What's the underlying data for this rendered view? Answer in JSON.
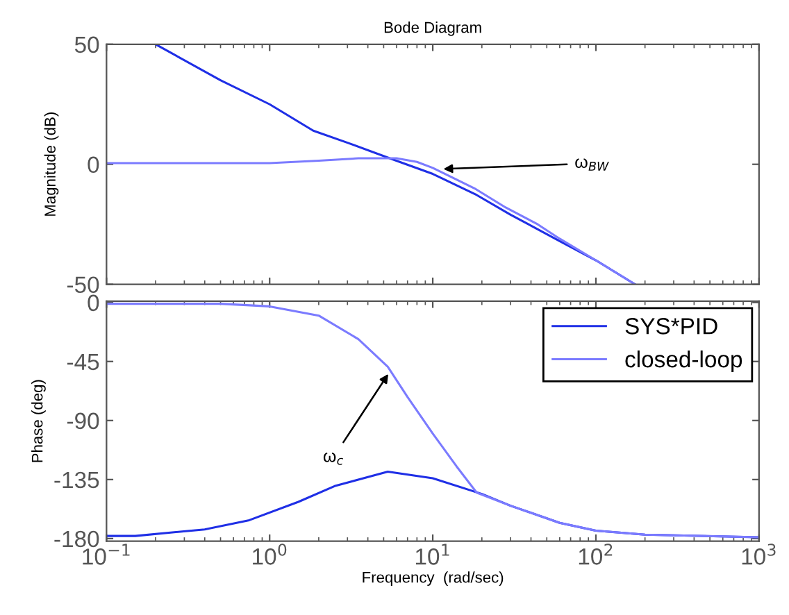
{
  "chart_data": [
    {
      "type": "line",
      "title": "Bode Diagram",
      "ylabel": "Magnitude (dB)",
      "log": "x",
      "xlim": [
        0.1,
        1000
      ],
      "xticks": [
        0.1,
        1,
        10,
        100,
        1000
      ],
      "ylim": [
        -50,
        50
      ],
      "yticks": [
        -50,
        0,
        50
      ],
      "tick_labels": "y",
      "grid": false,
      "legend": false,
      "annotations": [
        {
          "text": "ω$_{BW}$",
          "x": 11,
          "y": -2
        }
      ],
      "series": [
        {
          "color": "#1f2fe6",
          "x": [
            0.2,
            0.5,
            1,
            1.85,
            3,
            5.7,
            10,
            18.6,
            30,
            60,
            100,
            174
          ],
          "values": [
            50,
            35,
            25,
            14,
            9,
            2,
            -4,
            -12.8,
            -21,
            -32,
            -40,
            -50
          ]
        },
        {
          "color": "#7b7bff",
          "x": [
            0.1,
            1,
            2,
            3.5,
            6,
            8,
            10,
            18,
            28,
            44,
            60,
            100,
            174
          ],
          "values": [
            0.5,
            0.5,
            1.5,
            2.5,
            2.5,
            1,
            -1.5,
            -10,
            -18,
            -25,
            -31,
            -40,
            -50
          ]
        }
      ]
    },
    {
      "type": "line",
      "xlabel": "Frequency  (rad/sec)",
      "ylabel": "Phase (deg)",
      "log": "x",
      "xlim": [
        0.1,
        1000
      ],
      "xticks": [
        {
          "value": 0.1,
          "label": "10$^{−1}$"
        },
        {
          "value": 1,
          "label": "10$^{0}$"
        },
        {
          "value": 10,
          "label": "10$^{1}$"
        },
        {
          "value": 100,
          "label": "10$^{2}$"
        },
        {
          "value": 1000,
          "label": "10$^{3}$"
        }
      ],
      "ylim": [
        -182,
        1
      ],
      "yticks": [
        -180,
        -135,
        -90,
        -45,
        0
      ],
      "grid": false,
      "legend": "top right",
      "annotations": [
        {
          "text": "ω$_{c}$",
          "x": 5.5,
          "y": -52
        }
      ],
      "series": [
        {
          "name": "SYS*PID",
          "color": "#1f2fe6",
          "x": [
            0.1,
            0.15,
            0.4,
            0.75,
            1.5,
            2.5,
            5.3,
            10,
            20,
            30,
            60,
            100,
            200,
            1000
          ],
          "values": [
            -178,
            -178,
            -173,
            -166,
            -152,
            -140,
            -129,
            -134,
            -146,
            -155,
            -168,
            -174,
            -177,
            -179
          ]
        },
        {
          "name": "closed-loop",
          "color": "#7b7bff",
          "x": [
            0.1,
            0.5,
            1,
            2,
            3.5,
            5.3,
            7,
            10,
            14,
            18.6,
            30,
            60,
            100,
            200,
            1000
          ],
          "values": [
            -1,
            -1,
            -3,
            -10,
            -28,
            -49,
            -72,
            -100,
            -125,
            -145,
            -155,
            -168,
            -174,
            -177,
            -179
          ]
        }
      ]
    }
  ]
}
